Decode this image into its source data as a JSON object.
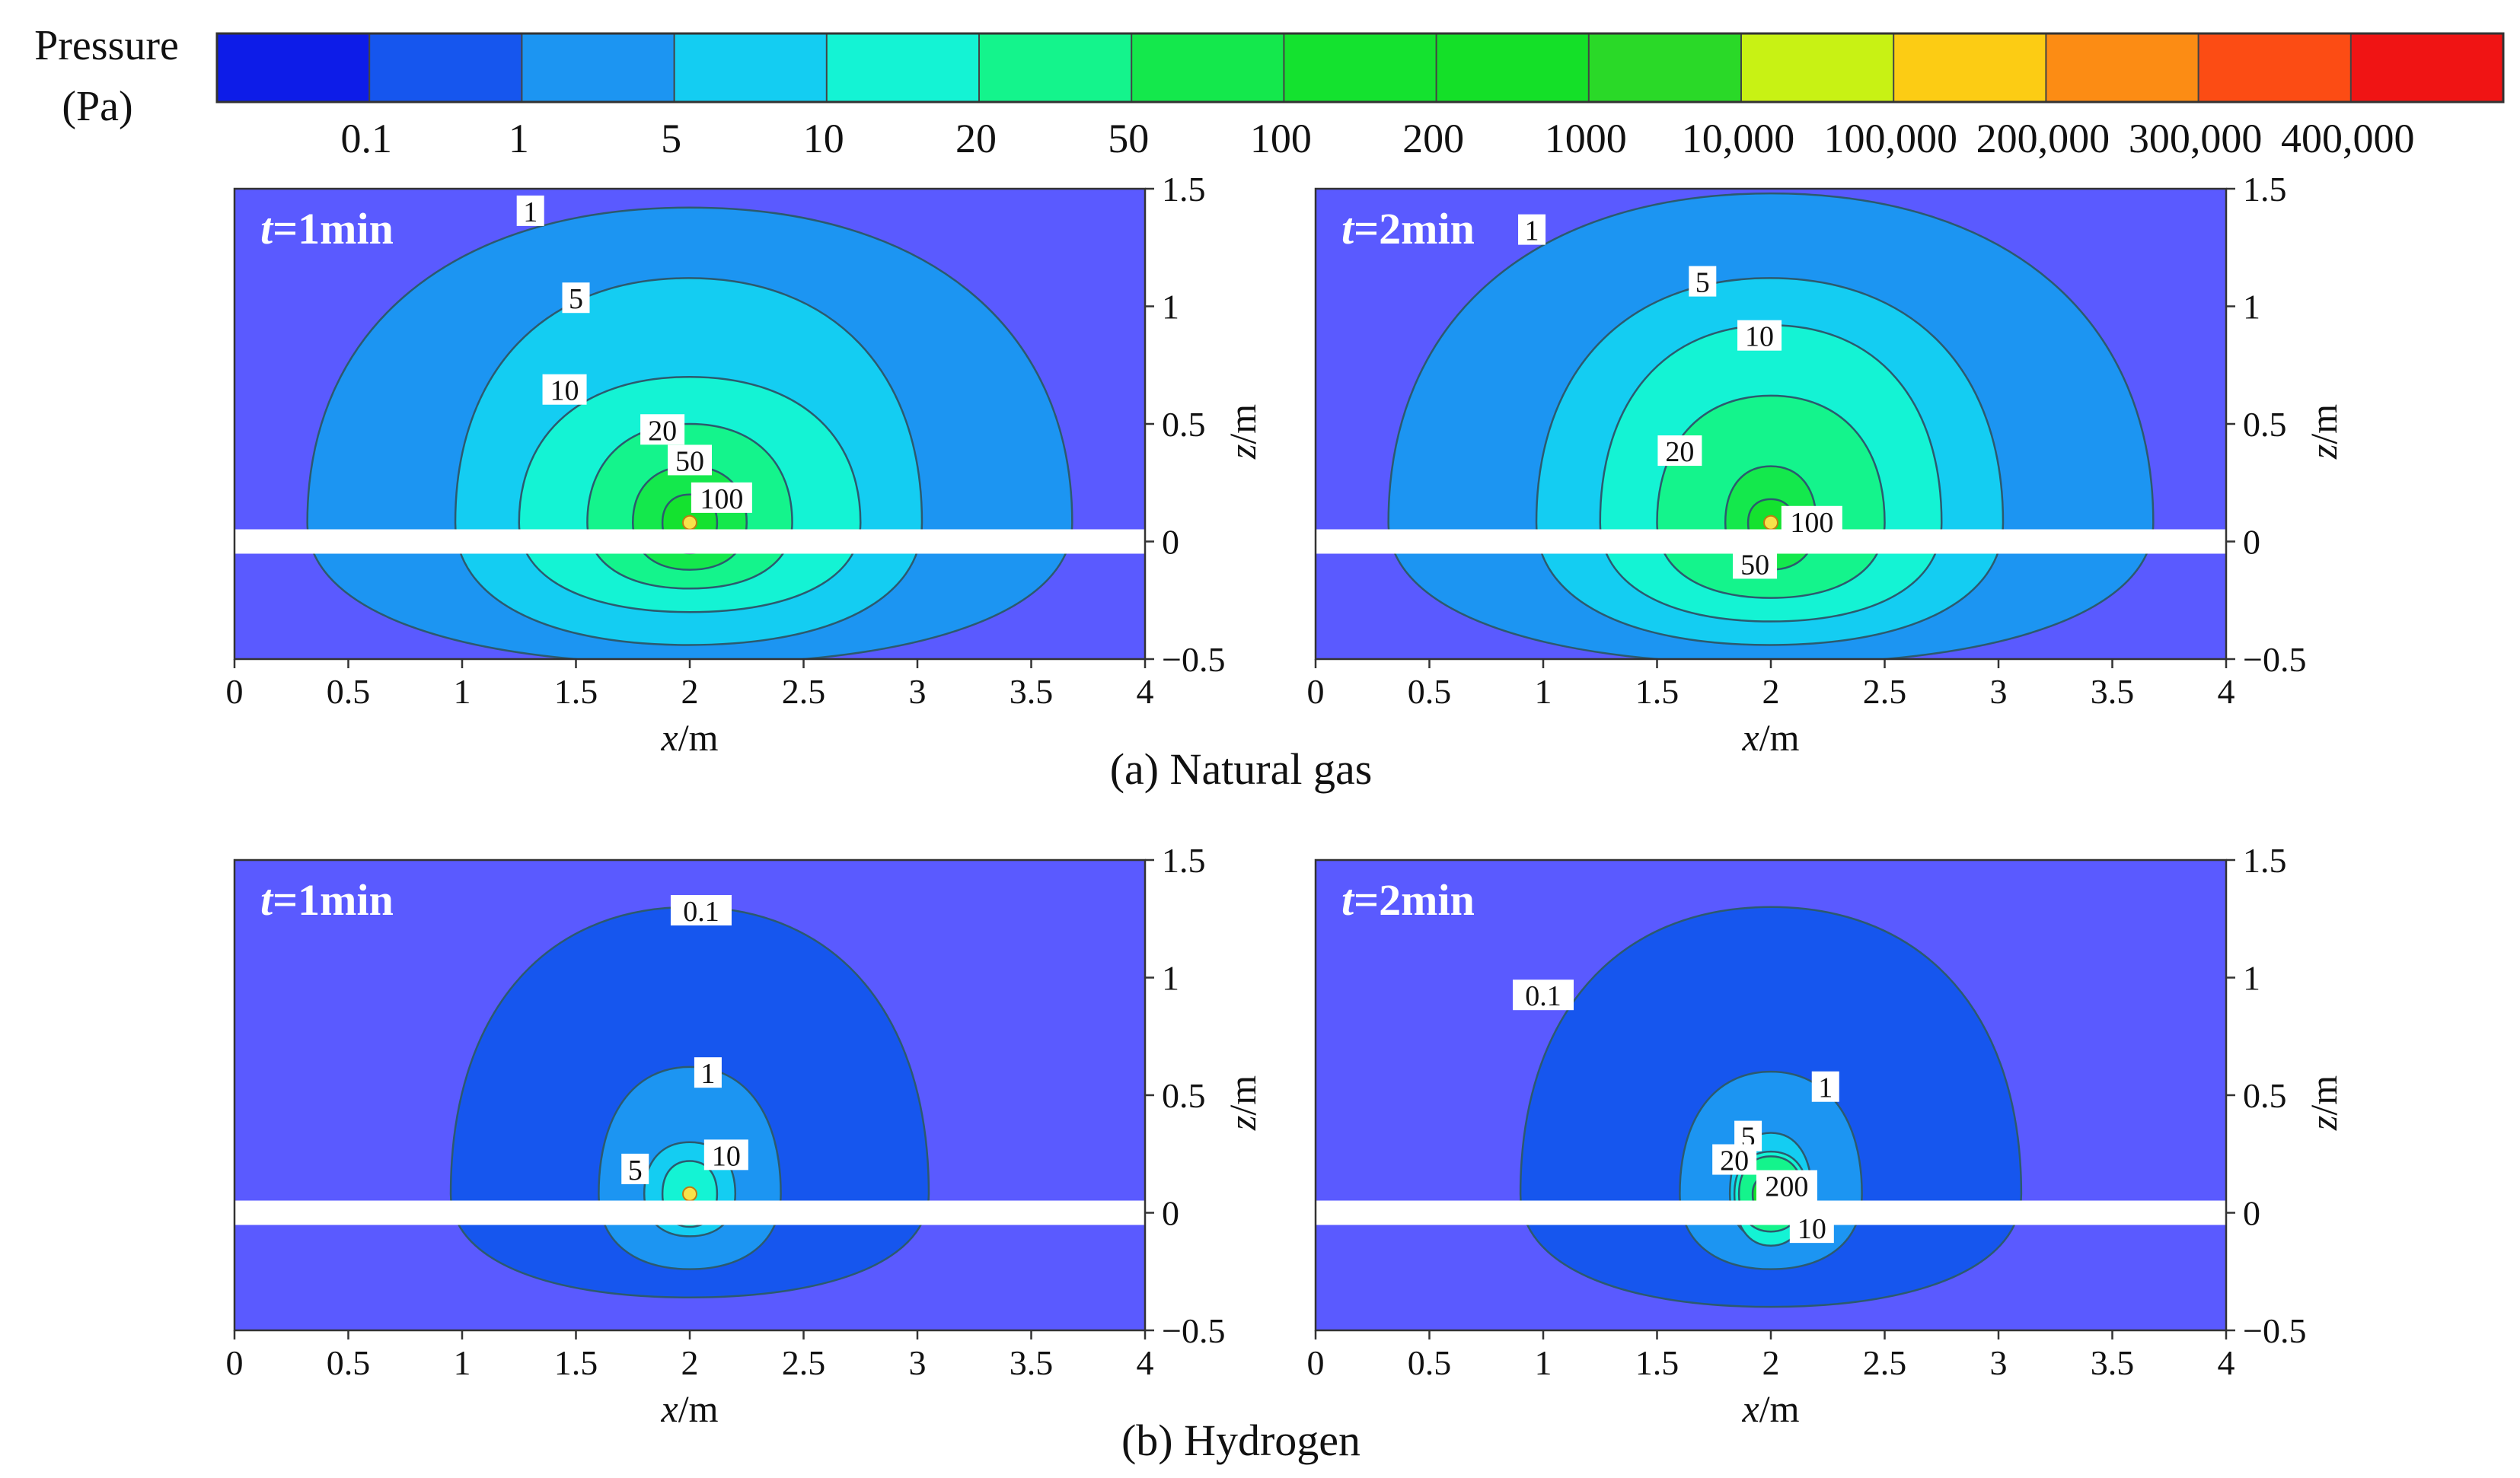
{
  "colorbar": {
    "title_line1": "Pressure",
    "title_line2": "(Pa)",
    "levels": [
      "0.1",
      "1",
      "5",
      "10",
      "20",
      "50",
      "100",
      "200",
      "1000",
      "10,000",
      "100,000",
      "200,000",
      "300,000",
      "400,000"
    ],
    "colors": [
      "#0d1ce8",
      "#1656ee",
      "#1c95f2",
      "#14cdf2",
      "#14f3d4",
      "#14f48c",
      "#14e84c",
      "#14e22f",
      "#14e028",
      "#2ad928",
      "#c8f214",
      "#fccc14",
      "#fc8c14",
      "#fc4c14",
      "#f01414"
    ]
  },
  "panel_fill": {
    "background": "#5a5aff",
    "contour_1": "#1f91f2",
    "contour_5": "#13dff4",
    "line_color": "#2c5a6e",
    "pipe": "#ffffff"
  },
  "subfigures": [
    {
      "caption": "(a) Natural gas"
    },
    {
      "caption": "(b) Hydrogen"
    }
  ],
  "chart_data": [
    {
      "type": "contour",
      "title": "t=1min",
      "title_var": "t",
      "title_rest": "=1min",
      "group": "(a) Natural gas",
      "xlabel_var": "x",
      "xlabel_unit": "/m",
      "ylabel_var": "z",
      "ylabel_unit": "/m",
      "xlim": [
        0,
        4
      ],
      "ylim": [
        -0.5,
        1.5
      ],
      "x_ticks": [
        "0",
        "0.5",
        "1",
        "1.5",
        "2",
        "2.5",
        "3",
        "3.5",
        "4"
      ],
      "y_ticks": [
        "−0.5",
        "0",
        "0.5",
        "1",
        "1.5"
      ],
      "source": {
        "x": 2.0,
        "z": 0.08
      },
      "pipe_z": 0.0,
      "contours": [
        {
          "level": 1,
          "label": "1",
          "x_left": 0.32,
          "x_right": 3.68,
          "z_top": 1.42,
          "z_bottom": -0.52,
          "label_pos": [
            1.3,
            1.4
          ]
        },
        {
          "level": 5,
          "label": "5",
          "x_left": 0.97,
          "x_right": 3.02,
          "z_top": 1.12,
          "z_bottom": -0.44,
          "label_pos": [
            1.5,
            1.03
          ]
        },
        {
          "level": 10,
          "label": "10",
          "x_left": 1.25,
          "x_right": 2.75,
          "z_top": 0.7,
          "z_bottom": -0.3,
          "label_pos": [
            1.45,
            0.64
          ]
        },
        {
          "level": 20,
          "label": "20",
          "x_left": 1.55,
          "x_right": 2.45,
          "z_top": 0.5,
          "z_bottom": -0.2,
          "label_pos": [
            1.88,
            0.47
          ]
        },
        {
          "level": 50,
          "label": "50",
          "x_left": 1.75,
          "x_right": 2.25,
          "z_top": 0.32,
          "z_bottom": -0.12,
          "label_pos": [
            2.0,
            0.34
          ]
        },
        {
          "level": 100,
          "label": "100",
          "x_left": 1.88,
          "x_right": 2.12,
          "z_top": 0.2,
          "z_bottom": -0.05,
          "label_pos": [
            2.14,
            0.18
          ]
        }
      ]
    },
    {
      "type": "contour",
      "title": "t=2min",
      "title_var": "t",
      "title_rest": "=2min",
      "group": "(a) Natural gas",
      "xlabel_var": "x",
      "xlabel_unit": "/m",
      "ylabel_var": "z",
      "ylabel_unit": "/m",
      "xlim": [
        0,
        4
      ],
      "ylim": [
        -0.5,
        1.5
      ],
      "x_ticks": [
        "0",
        "0.5",
        "1",
        "1.5",
        "2",
        "2.5",
        "3",
        "3.5",
        "4"
      ],
      "y_ticks": [
        "−0.5",
        "0",
        "0.5",
        "1",
        "1.5"
      ],
      "source": {
        "x": 2.0,
        "z": 0.08
      },
      "pipe_z": 0.0,
      "contours": [
        {
          "level": 1,
          "label": "1",
          "x_left": 0.32,
          "x_right": 3.68,
          "z_top": 1.48,
          "z_bottom": -0.52,
          "label_pos": [
            0.95,
            1.32
          ]
        },
        {
          "level": 5,
          "label": "5",
          "x_left": 0.97,
          "x_right": 3.02,
          "z_top": 1.12,
          "z_bottom": -0.44,
          "label_pos": [
            1.7,
            1.1
          ]
        },
        {
          "level": 10,
          "label": "10",
          "x_left": 1.25,
          "x_right": 2.75,
          "z_top": 0.92,
          "z_bottom": -0.34,
          "label_pos": [
            1.95,
            0.87
          ]
        },
        {
          "level": 20,
          "label": "20",
          "x_left": 1.5,
          "x_right": 2.5,
          "z_top": 0.62,
          "z_bottom": -0.24,
          "label_pos": [
            1.6,
            0.38
          ]
        },
        {
          "level": 50,
          "label": "50",
          "x_left": 1.8,
          "x_right": 2.2,
          "z_top": 0.32,
          "z_bottom": -0.12,
          "label_pos": [
            1.93,
            -0.1
          ]
        },
        {
          "level": 100,
          "label": "100",
          "x_left": 1.9,
          "x_right": 2.1,
          "z_top": 0.18,
          "z_bottom": -0.04,
          "label_pos": [
            2.18,
            0.08
          ]
        }
      ]
    },
    {
      "type": "contour",
      "title": "t=1min",
      "title_var": "t",
      "title_rest": "=1min",
      "group": "(b) Hydrogen",
      "xlabel_var": "x",
      "xlabel_unit": "/m",
      "ylabel_var": "z",
      "ylabel_unit": "/m",
      "xlim": [
        0,
        4
      ],
      "ylim": [
        -0.5,
        1.5
      ],
      "x_ticks": [
        "0",
        "0.5",
        "1",
        "1.5",
        "2",
        "2.5",
        "3",
        "3.5",
        "4"
      ],
      "y_ticks": [
        "−0.5",
        "0",
        "0.5",
        "1",
        "1.5"
      ],
      "source": {
        "x": 2.0,
        "z": 0.08
      },
      "pipe_z": 0.0,
      "contours": [
        {
          "level": 0.1,
          "label": "0.1",
          "x_left": 0.95,
          "x_right": 3.05,
          "z_top": 1.3,
          "z_bottom": -0.36,
          "label_pos": [
            2.05,
            1.28
          ]
        },
        {
          "level": 1,
          "label": "1",
          "x_left": 1.6,
          "x_right": 2.4,
          "z_top": 0.62,
          "z_bottom": -0.24,
          "label_pos": [
            2.08,
            0.59
          ]
        },
        {
          "level": 5,
          "label": "5",
          "x_left": 1.8,
          "x_right": 2.2,
          "z_top": 0.3,
          "z_bottom": -0.1,
          "label_pos": [
            1.76,
            0.18
          ]
        },
        {
          "level": 10,
          "label": "10",
          "x_left": 1.88,
          "x_right": 2.12,
          "z_top": 0.22,
          "z_bottom": -0.06,
          "label_pos": [
            2.16,
            0.24
          ]
        }
      ]
    },
    {
      "type": "contour",
      "title": "t=2min",
      "title_var": "t",
      "title_rest": "=2min",
      "group": "(b) Hydrogen",
      "xlabel_var": "x",
      "xlabel_unit": "/m",
      "ylabel_var": "z",
      "ylabel_unit": "/m",
      "xlim": [
        0,
        4
      ],
      "ylim": [
        -0.5,
        1.5
      ],
      "x_ticks": [
        "0",
        "0.5",
        "1",
        "1.5",
        "2",
        "2.5",
        "3",
        "3.5",
        "4"
      ],
      "y_ticks": [
        "−0.5",
        "0",
        "0.5",
        "1",
        "1.5"
      ],
      "source": {
        "x": 2.0,
        "z": 0.08
      },
      "pipe_z": 0.0,
      "contours": [
        {
          "level": 0.1,
          "label": "0.1",
          "x_left": 0.9,
          "x_right": 3.1,
          "z_top": 1.3,
          "z_bottom": -0.4,
          "label_pos": [
            1.0,
            0.92
          ]
        },
        {
          "level": 1,
          "label": "1",
          "x_left": 1.6,
          "x_right": 2.4,
          "z_top": 0.6,
          "z_bottom": -0.24,
          "label_pos": [
            2.24,
            0.53
          ]
        },
        {
          "level": 5,
          "label": "5",
          "x_left": 1.82,
          "x_right": 2.18,
          "z_top": 0.34,
          "z_bottom": -0.12,
          "label_pos": [
            1.9,
            0.32
          ]
        },
        {
          "level": 20,
          "label": "20",
          "x_left": 1.86,
          "x_right": 2.14,
          "z_top": 0.24,
          "z_bottom": -0.08,
          "label_pos": [
            1.84,
            0.22
          ]
        },
        {
          "level": 200,
          "label": "200",
          "x_left": 1.92,
          "x_right": 2.08,
          "z_top": 0.16,
          "z_bottom": -0.02,
          "label_pos": [
            2.07,
            0.11
          ]
        },
        {
          "level": 10,
          "label": "10",
          "x_left": 1.84,
          "x_right": 2.16,
          "z_top": 0.26,
          "z_bottom": -0.14,
          "label_pos": [
            2.18,
            -0.07
          ]
        }
      ]
    }
  ]
}
